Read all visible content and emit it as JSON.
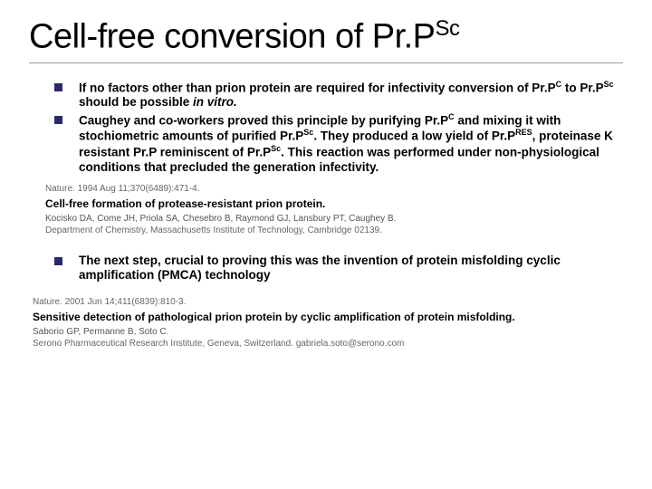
{
  "title_main": "Cell-free conversion of Pr.P",
  "title_sup": "Sc",
  "bullets": [
    {
      "html": "If no factors other than prion protein are required for infectivity conversion of Pr.P<sup>C</sup> to Pr.P<sup>Sc</sup> should be possible <em>in vitro.</em>"
    },
    {
      "html": "Caughey and co-workers proved this principle by purifying Pr.P<sup>C</sup> and mixing it with stochiometric amounts of purified Pr.P<sup>Sc</sup>. They produced a low yield of Pr.P<sup>RES</sup>, proteinase K resistant Pr.P reminiscent of Pr.P<sup>Sc</sup>. This reaction was performed under non-physiological conditions that precluded the generation infectivity."
    }
  ],
  "citation1": {
    "journal": "Nature. 1994 Aug 11;370(6489):471-4.",
    "title": "Cell-free formation of protease-resistant prion protein.",
    "authors": "Kocisko DA, Come JH, Priola SA, Chesebro B, Raymond GJ, Lansbury PT, Caughey B.",
    "affil": "Department of Chemistry, Massachusetts Institute of Technology, Cambridge 02139."
  },
  "bullet3": {
    "html": "The next step, crucial to proving this was the invention of protein misfolding cyclic amplification (PMCA) technology"
  },
  "citation2": {
    "journal": "Nature. 2001 Jun 14;411(6839):810-3.",
    "title": "Sensitive detection of pathological prion protein by cyclic amplification of protein misfolding.",
    "authors": "Saborio GP, Permanne B, Soto C.",
    "affil": "Serono Pharmaceutical Research Institute, Geneva, Switzerland. gabriela.soto@serono.com"
  }
}
